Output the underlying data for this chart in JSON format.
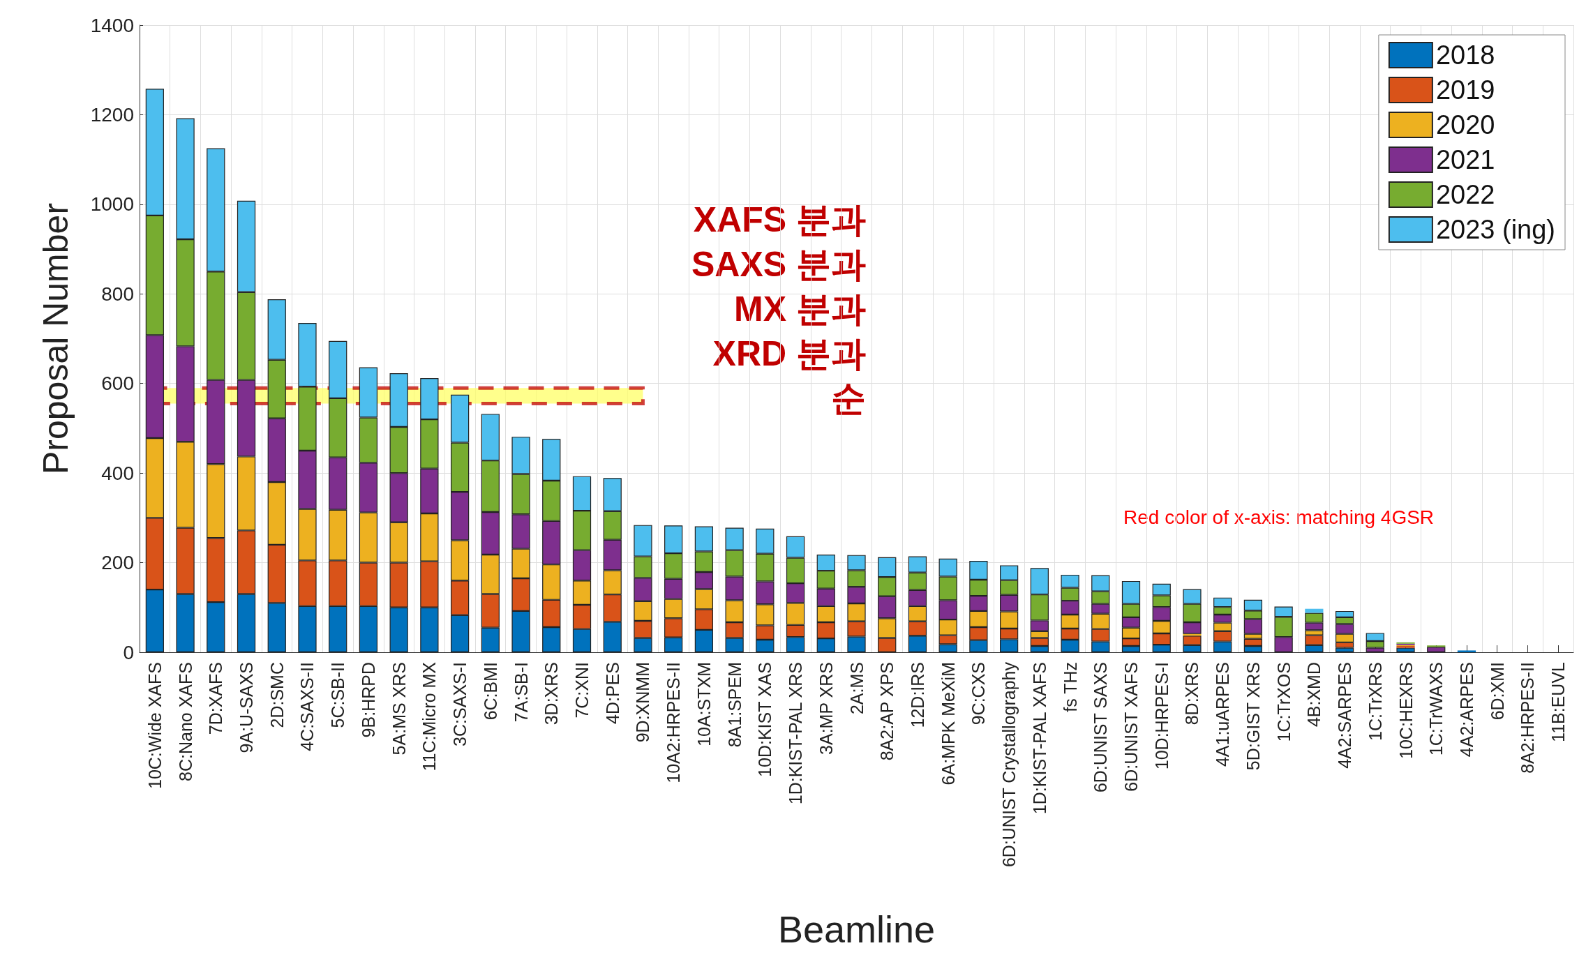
{
  "chart_data": {
    "type": "bar",
    "stacked": true,
    "xlabel": "Beamline",
    "ylabel": "Proposal Number",
    "categories": [
      "10C:Wide XAFS",
      "8C:Nano XAFS",
      "7D:XAFS",
      "9A:U-SAXS",
      "2D:SMC",
      "4C:SAXS-II",
      "5C:SB-II",
      "9B:HRPD",
      "5A:MS XRS",
      "11C:Micro MX",
      "3C:SAXS-I",
      "6C:BMI",
      "7A:SB-I",
      "3D:XRS",
      "7C:XNI",
      "4D:PES",
      "9D:XNMM",
      "10A2:HRPES-II",
      "10A:STXM",
      "8A1:SPEM",
      "10D:KIST XAS",
      "1D:KIST-PAL XRS",
      "3A:MP XRS",
      "2A:MS",
      "8A2:AP XPS",
      "12D:IRS",
      "6A:MPK MeXiM",
      "9C:CXS",
      "6D:UNIST Crystallography",
      "1D:KIST-PAL XAFS",
      "fs THz",
      "6D:UNIST SAXS",
      "6D:UNIST XAFS",
      "10D:HRPES-I",
      "8D:XRS",
      "4A1:uARPES",
      "5D:GIST XRS",
      "1C:TrXOS",
      "4B:XMD",
      "4A2:SARPES",
      "1C:TrXRS",
      "10C:HEXRS",
      "1C:TrWAXS",
      "4A2:ARPES",
      "6D:XMI",
      "8A2:HRPES-II",
      "11B:EUVL"
    ],
    "series": [
      {
        "name": "2018",
        "color": "#0072bd",
        "values": [
          140,
          130,
          112,
          130,
          110,
          103,
          103,
          103,
          100,
          100,
          83,
          55,
          92,
          56,
          52,
          68,
          32,
          33,
          50,
          32,
          28,
          34,
          31,
          35,
          0,
          37,
          18,
          27,
          29,
          14,
          28,
          24,
          14,
          17,
          16,
          24,
          14,
          0,
          16,
          10,
          0,
          10,
          0,
          4,
          0,
          0,
          0
        ]
      },
      {
        "name": "2019",
        "color": "#d95319",
        "values": [
          160,
          148,
          143,
          142,
          130,
          102,
          102,
          97,
          100,
          103,
          77,
          75,
          73,
          61,
          54,
          61,
          38,
          43,
          46,
          35,
          32,
          27,
          36,
          34,
          32,
          32,
          20,
          29,
          24,
          18,
          25,
          28,
          17,
          25,
          21,
          23,
          16,
          0,
          22,
          12,
          0,
          4,
          0,
          0,
          0,
          0,
          0
        ]
      },
      {
        "name": "2020",
        "color": "#edb120",
        "values": [
          178,
          192,
          165,
          165,
          140,
          115,
          113,
          112,
          90,
          107,
          90,
          88,
          66,
          79,
          54,
          54,
          44,
          43,
          45,
          49,
          47,
          49,
          36,
          40,
          44,
          34,
          35,
          36,
          38,
          15,
          31,
          34,
          24,
          28,
          4,
          19,
          11,
          0,
          11,
          19,
          0,
          2,
          0,
          0,
          0,
          0,
          0
        ]
      },
      {
        "name": "2021",
        "color": "#7e2f8e",
        "values": [
          230,
          213,
          188,
          171,
          142,
          130,
          117,
          111,
          110,
          100,
          108,
          95,
          77,
          97,
          68,
          68,
          52,
          45,
          38,
          53,
          51,
          44,
          39,
          37,
          49,
          36,
          43,
          34,
          37,
          24,
          31,
          22,
          23,
          31,
          26,
          18,
          33,
          34,
          17,
          22,
          10,
          3,
          12,
          0,
          0,
          0,
          0
        ]
      },
      {
        "name": "2022",
        "color": "#77ac30",
        "values": [
          267,
          239,
          242,
          196,
          131,
          143,
          132,
          101,
          103,
          110,
          110,
          115,
          90,
          90,
          88,
          64,
          48,
          57,
          46,
          59,
          62,
          57,
          40,
          37,
          43,
          39,
          53,
          36,
          33,
          58,
          29,
          28,
          30,
          26,
          41,
          17,
          19,
          45,
          22,
          15,
          15,
          3,
          3,
          0,
          0,
          0,
          0
        ]
      },
      {
        "name": "2023 (ing)",
        "color": "#4dbeee",
        "values": [
          283,
          270,
          275,
          204,
          135,
          142,
          128,
          112,
          120,
          92,
          107,
          104,
          83,
          93,
          77,
          74,
          70,
          62,
          56,
          50,
          56,
          48,
          36,
          34,
          44,
          36,
          40,
          42,
          33,
          59,
          29,
          36,
          51,
          26,
          33,
          21,
          24,
          23,
          9,
          14,
          18,
          0,
          0,
          0,
          0,
          0,
          0
        ]
      }
    ],
    "ylim": [
      0,
      1400
    ],
    "yticks": [
      0,
      200,
      400,
      600,
      800,
      1000,
      1200,
      1400
    ],
    "grid": true,
    "legend": "top right",
    "bands": [
      {
        "axis": "y",
        "from": 555,
        "to": 590,
        "color": "#ffff66"
      }
    ],
    "annotations": [
      "XAFS 분과",
      "SAXS 분과",
      "MX 분과",
      "XRD 분과",
      "순",
      "Red color of x-axis: matching 4GSR"
    ]
  }
}
